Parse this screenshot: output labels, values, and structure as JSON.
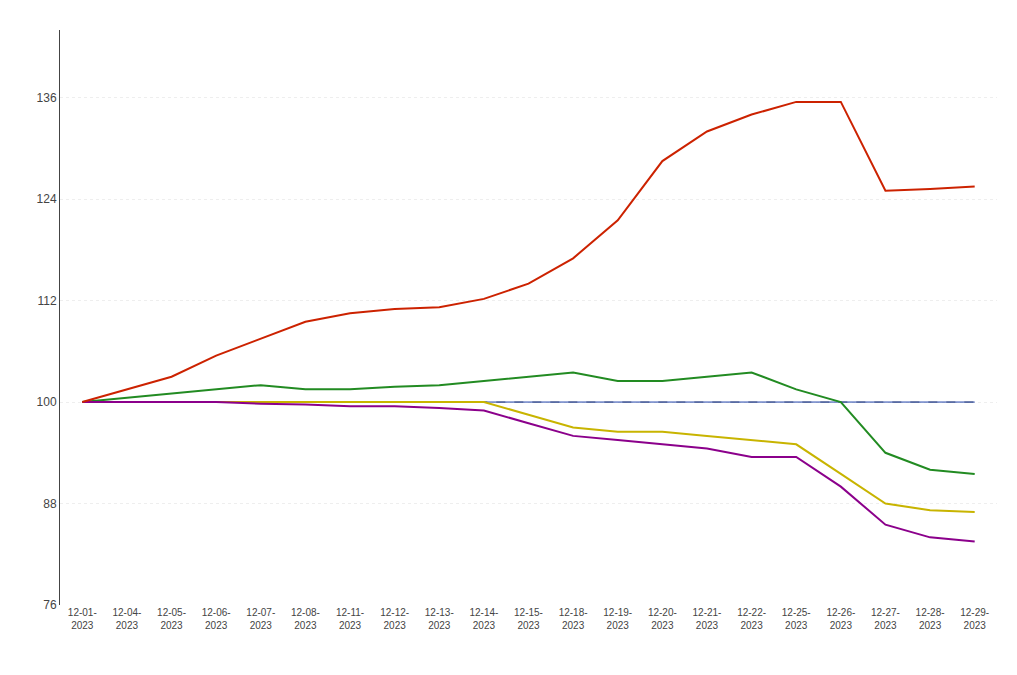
{
  "chart_data": {
    "type": "line",
    "categories": [
      "12-01-\n2023",
      "12-04-\n2023",
      "12-05-\n2023",
      "12-06-\n2023",
      "12-07-\n2023",
      "12-08-\n2023",
      "12-11-\n2023",
      "12-12-\n2023",
      "12-13-\n2023",
      "12-14-\n2023",
      "12-15-\n2023",
      "12-18-\n2023",
      "12-19-\n2023",
      "12-20-\n2023",
      "12-21-\n2023",
      "12-22-\n2023",
      "12-25-\n2023",
      "12-26-\n2023",
      "12-27-\n2023",
      "12-28-\n2023",
      "12-29-\n2023"
    ],
    "series": [
      {
        "color": "#2244aa",
        "values": [
          100.0,
          100.0,
          100.0,
          100.0,
          100.0,
          100.0,
          100.0,
          100.0,
          100.0,
          100.0,
          100.0,
          100.0,
          100.0,
          100.0,
          100.0,
          100.0,
          100.0,
          100.0,
          100.0,
          100.0,
          100.0
        ]
      },
      {
        "color": "#228b22",
        "values": [
          100.0,
          100.5,
          101.0,
          101.5,
          102.0,
          101.5,
          101.5,
          101.8,
          102.0,
          102.5,
          103.0,
          103.5,
          102.5,
          102.5,
          103.0,
          103.5,
          101.5,
          100.0,
          94.0,
          92.0,
          91.5
        ]
      },
      {
        "color": "#c8b400",
        "values": [
          100.0,
          100.0,
          100.0,
          100.0,
          100.0,
          100.0,
          100.0,
          100.0,
          100.0,
          100.0,
          98.5,
          97.0,
          96.5,
          96.5,
          96.0,
          95.5,
          95.0,
          91.5,
          88.0,
          87.2,
          87.0
        ]
      },
      {
        "color": "#8b008b",
        "values": [
          100.0,
          100.0,
          100.0,
          100.0,
          99.8,
          99.7,
          99.5,
          99.5,
          99.3,
          99.0,
          97.5,
          96.0,
          95.5,
          95.0,
          94.5,
          93.5,
          93.5,
          90.0,
          85.5,
          84.0,
          83.5
        ]
      },
      {
        "color": "#cc2200",
        "values": [
          100.0,
          101.5,
          103.0,
          105.5,
          107.5,
          109.5,
          110.5,
          111.0,
          111.2,
          112.2,
          114.0,
          117.0,
          121.5,
          128.5,
          132.0,
          134.0,
          135.5,
          135.5,
          125.0,
          125.2,
          125.5
        ]
      }
    ],
    "hlines": [
      {
        "y": 100,
        "color": "#555555",
        "line_style": "dashed"
      }
    ],
    "ylim": [
      76,
      144
    ],
    "yticks": [
      76,
      88,
      100,
      112,
      124,
      136
    ],
    "grid": true
  }
}
